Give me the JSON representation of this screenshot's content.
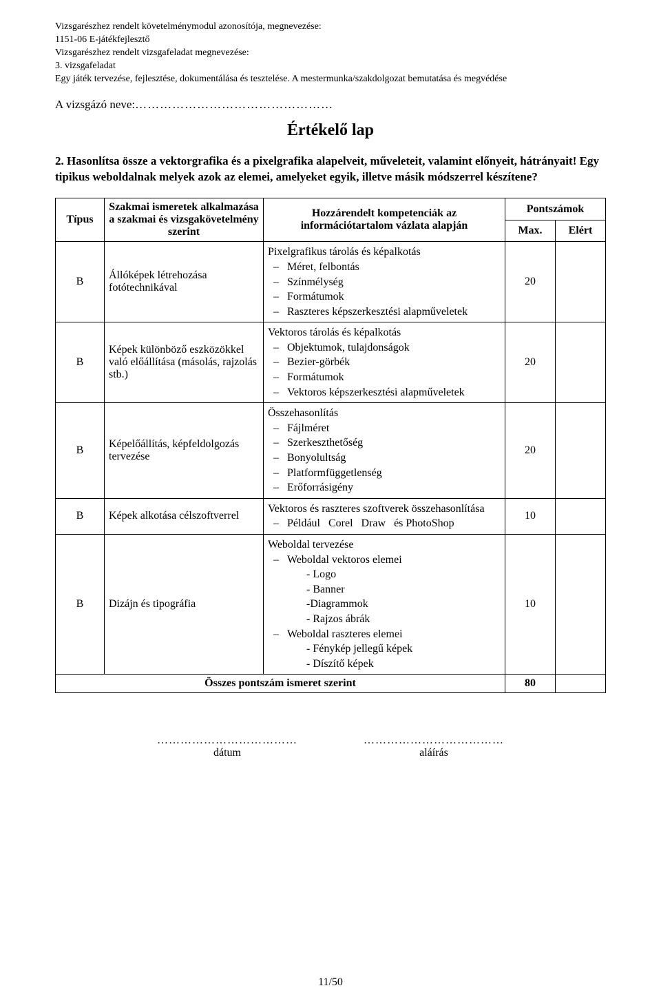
{
  "header": {
    "line1": "Vizsgarészhez rendelt követelménymodul azonosítója, megnevezése:",
    "line2": "1151-06 E-játékfejlesztő",
    "line3": "Vizsgarészhez rendelt vizsgafeladat megnevezése:",
    "line4": "3. vizsgafeladat",
    "line5": "Egy játék tervezése, fejlesztése, dokumentálása és tesztelése. A mestermunka/szakdolgozat bemutatása és megvédése"
  },
  "examinee": {
    "label": "A vizsgázó neve:",
    "dots": "…………………………………………"
  },
  "title": "Értékelő lap",
  "question": "2. Hasonlítsa össze a vektorgrafika és a pixelgrafika alapelveit, műveleteit, valamint előnyeit, hátrányait! Egy tipikus weboldalnak melyek azok az elemei, amelyeket egyik, illetve másik módszerrel készítene?",
  "table": {
    "head": {
      "type": "Típus",
      "skill": "Szakmai ismeretek alkalmazása a szakmai és vizsgakövetelmény szerint",
      "comp": "Hozzárendelt kompetenciák az információtartalom vázlata alapján",
      "points": "Pontszámok",
      "max": "Max.",
      "got": "Elért"
    },
    "rows": [
      {
        "type": "B",
        "skill": "Állóképek létrehozása fotótechnikával",
        "comp_lead": "Pixelgrafikus tárolás és képalkotás",
        "items": [
          "Méret, felbontás",
          "Színmélység",
          "Formátumok",
          "Raszteres képszerkesztési alapműveletek"
        ],
        "max": "20"
      },
      {
        "type": "B",
        "skill": "Képek különböző eszközökkel való előállítása (másolás, rajzolás stb.)",
        "comp_lead": "Vektoros tárolás és képalkotás",
        "items": [
          "Objektumok, tulajdonságok",
          "Bezier-görbék",
          "Formátumok",
          "Vektoros képszerkesztési alapműveletek"
        ],
        "max": "20"
      },
      {
        "type": "B",
        "skill": "Képelőállítás, képfeldolgozás tervezése",
        "comp_lead": "Összehasonlítás",
        "items": [
          "Fájlméret",
          "Szerkeszthetőség",
          "Bonyolultság",
          "Platformfüggetlenség",
          "Erőforrásigény"
        ],
        "max": "20"
      },
      {
        "type": "B",
        "skill": "Képek alkotása célszoftverrel",
        "comp_lead": "Vektoros és raszteres szoftverek összehasonlítása",
        "items_html": "<li class='just'>Például&nbsp;&nbsp;&nbsp;Corel&nbsp;&nbsp;&nbsp;Draw&nbsp;&nbsp;&nbsp;és PhotoShop</li>",
        "max": "10"
      },
      {
        "type": "B",
        "skill": "Dizájn és tipográfia",
        "comp_lead": "Weboldal tervezése",
        "items_html": "<li>Weboldal vektoros elemei<div class='sub'>- Logo</div><div class='sub'>- Banner</div><div class='sub'>-Diagrammok</div><div class='sub'>- Rajzos ábrák</div></li><li>Weboldal raszteres elemei<div class='sub'>- Fénykép jellegű képek</div><div class='sub'>- Díszítő képek</div></li>",
        "max": "10"
      }
    ],
    "total": {
      "label": "Összes pontszám ismeret szerint",
      "value": "80"
    }
  },
  "signature": {
    "dots": "………………………………",
    "date": "dátum",
    "sign": "aláírás"
  },
  "pagenum": "11/50"
}
